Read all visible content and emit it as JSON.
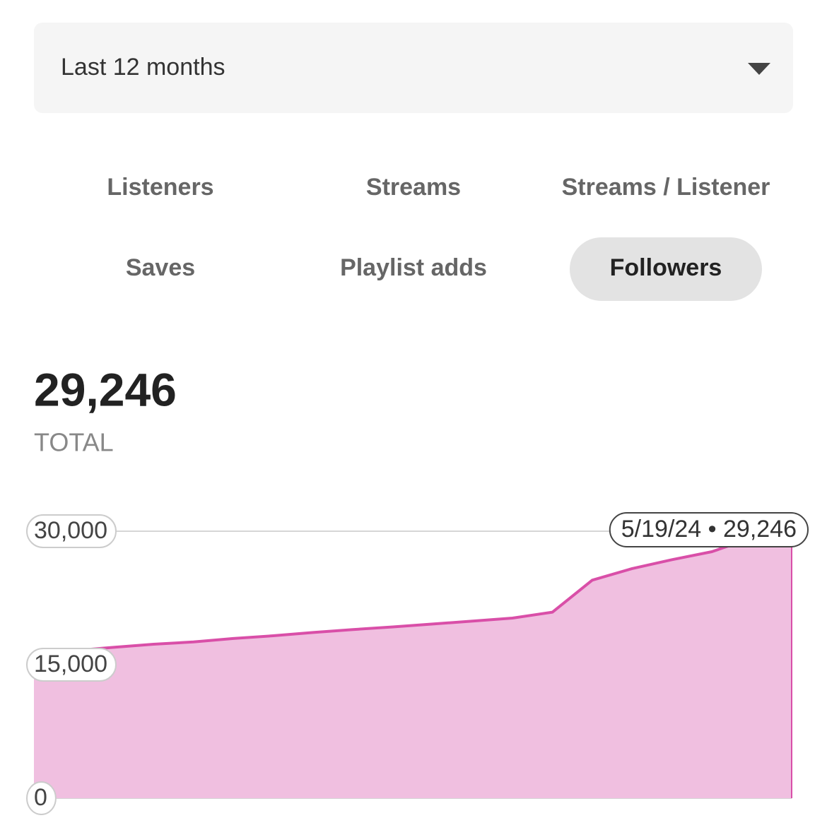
{
  "dropdown": {
    "label": "Last 12 months"
  },
  "tabs": [
    {
      "label": "Listeners",
      "active": false
    },
    {
      "label": "Streams",
      "active": false
    },
    {
      "label": "Streams / Listener",
      "active": false
    },
    {
      "label": "Saves",
      "active": false
    },
    {
      "label": "Playlist adds",
      "active": false
    },
    {
      "label": "Followers",
      "active": true
    }
  ],
  "total": {
    "value": "29,246",
    "label": "TOTAL"
  },
  "chart_data": {
    "type": "area",
    "color": "#d94fa8",
    "fill": "#f0bfe0",
    "values": [
      16270,
      16600,
      16950,
      17300,
      17560,
      17950,
      18250,
      18620,
      18950,
      19250,
      19570,
      19900,
      20240,
      20900,
      24500,
      25800,
      26800,
      27700,
      29246,
      29246
    ],
    "ylim": [
      0,
      30000
    ],
    "yticks": [
      0,
      {
        "value": 15000,
        "label": "15,000"
      },
      {
        "value": 30000,
        "label": "30,000"
      }
    ],
    "grid": true,
    "annotation": "5/19/24 • 29,246"
  }
}
